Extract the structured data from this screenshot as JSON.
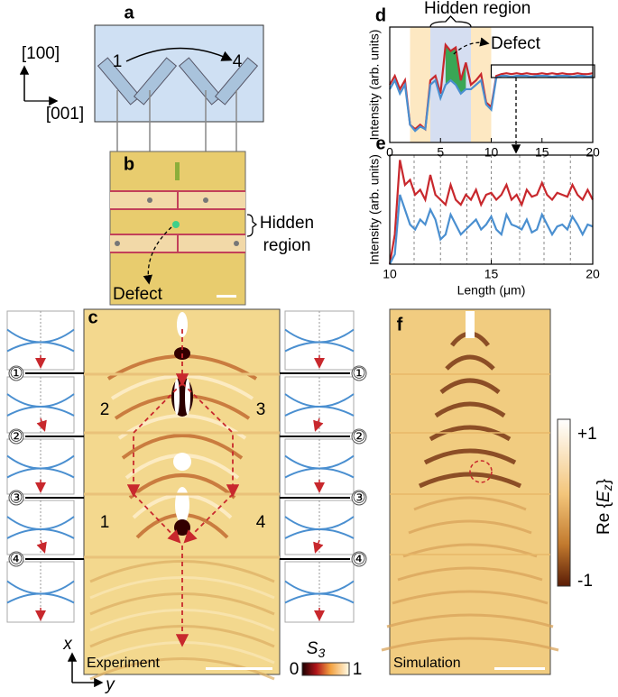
{
  "panels": {
    "a": {
      "label": "a",
      "start": "1",
      "end": "4",
      "axis_up": "[100]",
      "axis_right": "[001]"
    },
    "b": {
      "label": "b",
      "hidden_line1": "Hidden",
      "hidden_line2": "region",
      "defect": "Defect"
    },
    "c": {
      "label": "c",
      "regions": [
        "2",
        "3",
        "1",
        "4"
      ],
      "caption": "Experiment",
      "left_markers": [
        "①",
        "②",
        "③",
        "④"
      ],
      "right_markers": [
        "①",
        "②",
        "③",
        "④"
      ],
      "axis_x": "x",
      "axis_y": "y",
      "colorbar": {
        "symbol": "S",
        "subscript": "3",
        "min_label": "0",
        "max_label": "1"
      }
    },
    "d": {
      "label": "d",
      "hidden": "Hidden region",
      "defect": "Defect",
      "ylabel": "Intensity (arb. units)",
      "xlim": [
        0,
        20
      ],
      "xticks": [
        0,
        5,
        10,
        15,
        20
      ],
      "ylim": [
        -0.15,
        1.15
      ],
      "shaded": [
        {
          "from": 2,
          "to": 4,
          "color": "#fde8c2"
        },
        {
          "from": 4,
          "to": 8,
          "color": "#d5def1"
        },
        {
          "from": 8,
          "to": 10,
          "color": "#fde8c2"
        }
      ],
      "highlight": {
        "from": 5.5,
        "to": 7.5,
        "color": "#3aa655"
      },
      "x": [
        0,
        0.5,
        1,
        1.5,
        2,
        2.5,
        3,
        3.5,
        4,
        4.5,
        5,
        5.5,
        6,
        6.5,
        7,
        7.5,
        8,
        8.5,
        9,
        9.5,
        10,
        10.5,
        11,
        11.5,
        12,
        12.5,
        13,
        13.5,
        14,
        14.5,
        15,
        15.5,
        16,
        16.5,
        17,
        17.5,
        18,
        18.5,
        19,
        19.5,
        20
      ],
      "series": [
        {
          "color": "#c8282d",
          "values": [
            0.5,
            0.6,
            0.45,
            0.55,
            0.05,
            0.0,
            0.05,
            0.0,
            0.55,
            0.6,
            0.4,
            0.95,
            0.88,
            0.92,
            0.55,
            0.75,
            0.5,
            0.55,
            0.62,
            0.3,
            0.25,
            0.6,
            0.62,
            0.63,
            0.62,
            0.63,
            0.62,
            0.63,
            0.62,
            0.62,
            0.63,
            0.62,
            0.63,
            0.62,
            0.63,
            0.62,
            0.62,
            0.63,
            0.62,
            0.62,
            0.63
          ]
        },
        {
          "color": "#4a8fd0",
          "values": [
            0.45,
            0.55,
            0.4,
            0.5,
            0.05,
            -0.02,
            0.03,
            0.0,
            0.5,
            0.55,
            0.35,
            0.5,
            0.55,
            0.5,
            0.4,
            0.45,
            0.45,
            0.5,
            0.55,
            0.28,
            0.22,
            0.58,
            0.6,
            0.6,
            0.59,
            0.6,
            0.6,
            0.6,
            0.59,
            0.6,
            0.6,
            0.6,
            0.59,
            0.6,
            0.6,
            0.6,
            0.59,
            0.6,
            0.6,
            0.59,
            0.6
          ]
        }
      ]
    },
    "e": {
      "label": "e",
      "ylabel": "Intensity (arb. units)",
      "xlabel": "Length (μm)",
      "xlim": [
        10,
        20
      ],
      "xticks": [
        10,
        15,
        20
      ],
      "ylim": [
        -0.1,
        1.0
      ],
      "dashed": [
        11.2,
        12.5,
        13.8,
        15,
        16.4,
        17.6,
        18.9
      ],
      "x": [
        10,
        10.25,
        10.5,
        10.75,
        11,
        11.25,
        11.5,
        11.75,
        12,
        12.25,
        12.5,
        12.75,
        13,
        13.25,
        13.5,
        13.75,
        14,
        14.25,
        14.5,
        14.75,
        15,
        15.25,
        15.5,
        15.75,
        16,
        16.25,
        16.5,
        16.75,
        17,
        17.25,
        17.5,
        17.75,
        18,
        18.25,
        18.5,
        18.75,
        19,
        19.25,
        19.5,
        19.75,
        20
      ],
      "series": [
        {
          "color": "#c8282d",
          "values": [
            -0.1,
            0.2,
            0.95,
            0.7,
            0.75,
            0.6,
            0.65,
            0.55,
            0.8,
            0.6,
            0.55,
            0.5,
            0.7,
            0.55,
            0.5,
            0.6,
            0.55,
            0.65,
            0.5,
            0.6,
            0.62,
            0.55,
            0.6,
            0.7,
            0.55,
            0.6,
            0.5,
            0.65,
            0.58,
            0.6,
            0.72,
            0.6,
            0.55,
            0.62,
            0.6,
            0.58,
            0.7,
            0.6,
            0.55,
            0.65,
            0.55
          ]
        },
        {
          "color": "#4a8fd0",
          "values": [
            -0.1,
            0.0,
            0.6,
            0.45,
            0.3,
            0.25,
            0.35,
            0.3,
            0.45,
            0.35,
            0.15,
            0.2,
            0.4,
            0.3,
            0.2,
            0.25,
            0.3,
            0.35,
            0.25,
            0.3,
            0.38,
            0.25,
            0.2,
            0.4,
            0.3,
            0.28,
            0.25,
            0.35,
            0.22,
            0.25,
            0.4,
            0.3,
            0.2,
            0.28,
            0.3,
            0.25,
            0.38,
            0.3,
            0.2,
            0.3,
            0.28
          ]
        }
      ]
    },
    "f": {
      "label": "f",
      "caption": "Simulation",
      "colorbar": {
        "max_label": "+1",
        "min_label": "-1",
        "quantity": "Re",
        "field": "E",
        "sub": "z"
      }
    }
  }
}
